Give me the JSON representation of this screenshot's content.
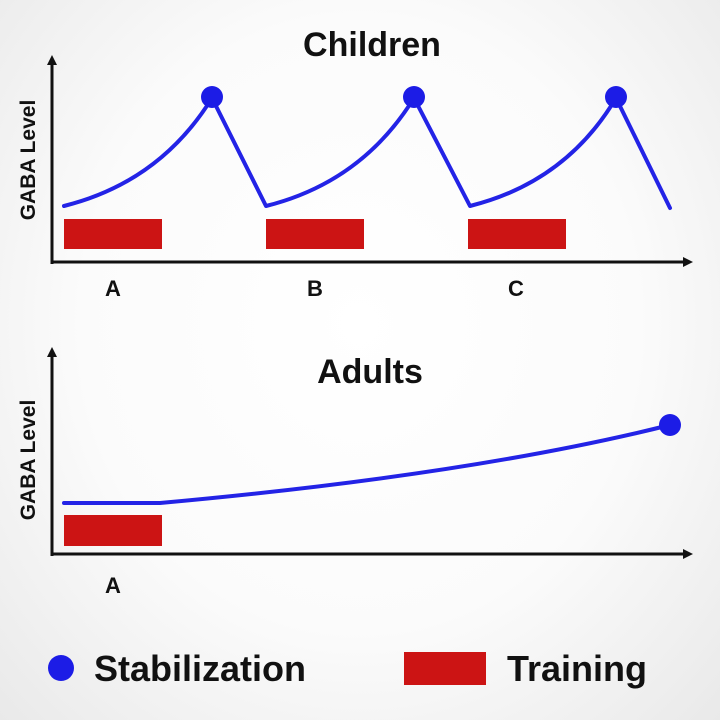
{
  "colors": {
    "stabilization": "#1c1ce6",
    "training": "#cc1414",
    "curve": "#2323e6",
    "axis": "#111111"
  },
  "panels": [
    {
      "title": "Children",
      "ylabel": "GABA Level",
      "phases": [
        "A",
        "B",
        "C"
      ]
    },
    {
      "title": "Adults",
      "ylabel": "GABA Level",
      "phases": [
        "A"
      ]
    }
  ],
  "legend": {
    "stabilization": "Stabilization",
    "training": "Training"
  }
}
